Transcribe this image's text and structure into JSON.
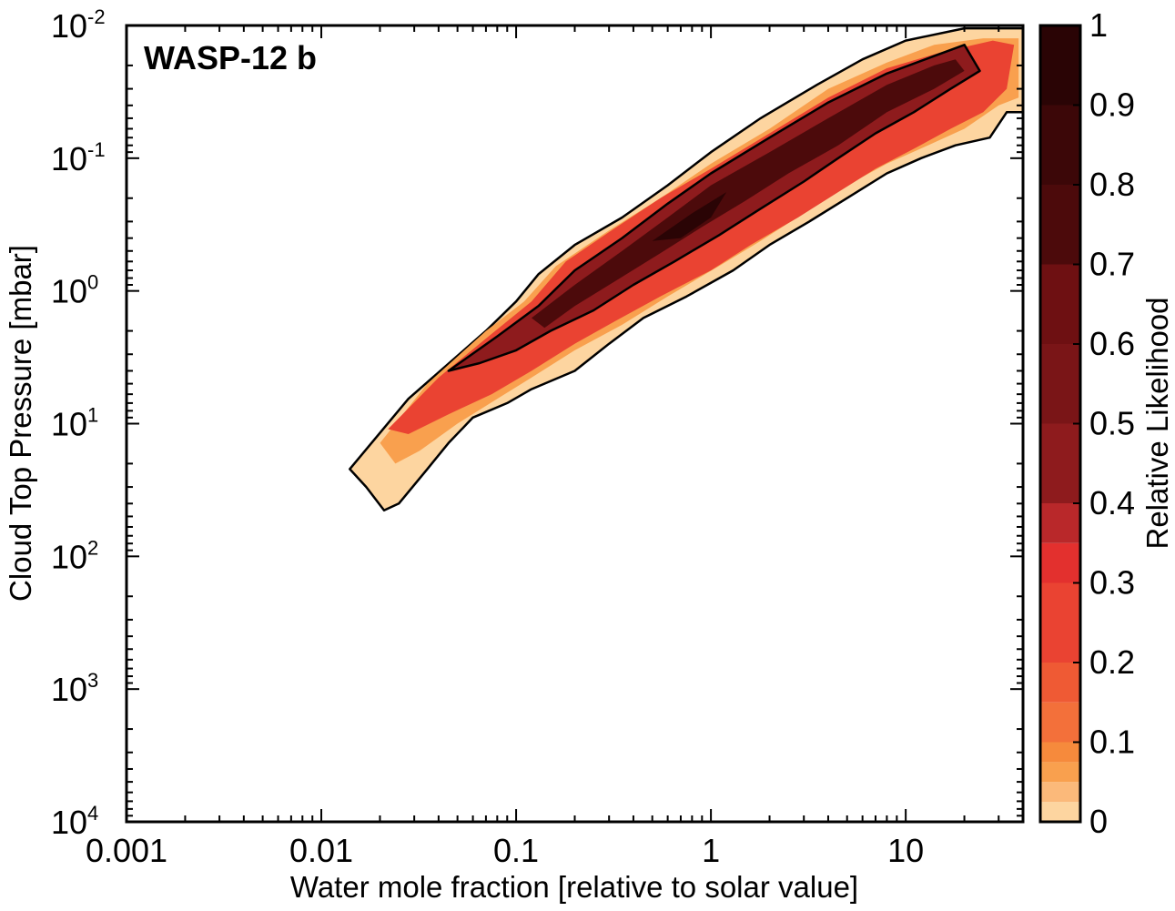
{
  "chart_data": {
    "type": "heatmap",
    "subtype": "filled-contour",
    "title": "",
    "annotation": "WASP-12 b",
    "xlabel": "Water mole fraction [relative to solar value]",
    "ylabel": "Cloud Top Pressure [mbar]",
    "x_scale": "log",
    "y_scale": "log",
    "y_inverted": true,
    "xlim": [
      0.001,
      40
    ],
    "ylim": [
      0.01,
      10000
    ],
    "x_ticks": [
      {
        "value": 0.001,
        "label": "0.001"
      },
      {
        "value": 0.01,
        "label": "0.01"
      },
      {
        "value": 0.1,
        "label": "0.1"
      },
      {
        "value": 1,
        "label": "1"
      },
      {
        "value": 10,
        "label": "10"
      }
    ],
    "y_ticks": [
      {
        "value": 0.01,
        "base": "10",
        "exp": "-2"
      },
      {
        "value": 0.1,
        "base": "10",
        "exp": "-1"
      },
      {
        "value": 1,
        "base": "10",
        "exp": "0"
      },
      {
        "value": 10,
        "base": "10",
        "exp": "1"
      },
      {
        "value": 100,
        "base": "10",
        "exp": "2"
      },
      {
        "value": 1000,
        "base": "10",
        "exp": "3"
      },
      {
        "value": 10000,
        "base": "10",
        "exp": "4"
      }
    ],
    "colorbar": {
      "label": "Relative Likelihood",
      "range": [
        0,
        1
      ],
      "ticks": [
        {
          "value": 0,
          "label": "0"
        },
        {
          "value": 0.1,
          "label": "0.1"
        },
        {
          "value": 0.2,
          "label": "0.2"
        },
        {
          "value": 0.3,
          "label": "0.3"
        },
        {
          "value": 0.4,
          "label": "0.4"
        },
        {
          "value": 0.5,
          "label": "0.5"
        },
        {
          "value": 0.6,
          "label": "0.6"
        },
        {
          "value": 0.7,
          "label": "0.7"
        },
        {
          "value": 0.8,
          "label": "0.8"
        },
        {
          "value": 0.9,
          "label": "0.9"
        },
        {
          "value": 1,
          "label": "1"
        }
      ],
      "levels": [
        {
          "from": 0.0,
          "to": 0.025,
          "color": "#fdd5a0"
        },
        {
          "from": 0.025,
          "to": 0.05,
          "color": "#fbb97a"
        },
        {
          "from": 0.05,
          "to": 0.075,
          "color": "#f9a04e"
        },
        {
          "from": 0.075,
          "to": 0.1,
          "color": "#f68a3c"
        },
        {
          "from": 0.1,
          "to": 0.15,
          "color": "#f3703a"
        },
        {
          "from": 0.15,
          "to": 0.2,
          "color": "#ef5a34"
        },
        {
          "from": 0.2,
          "to": 0.3,
          "color": "#ea4332"
        },
        {
          "from": 0.3,
          "to": 0.35,
          "color": "#e3302e"
        },
        {
          "from": 0.35,
          "to": 0.4,
          "color": "#b9282a"
        },
        {
          "from": 0.4,
          "to": 0.5,
          "color": "#8e1b1d"
        },
        {
          "from": 0.5,
          "to": 0.6,
          "color": "#7a1517"
        },
        {
          "from": 0.6,
          "to": 0.7,
          "color": "#6e1012"
        },
        {
          "from": 0.7,
          "to": 0.8,
          "color": "#4c0a0b"
        },
        {
          "from": 0.8,
          "to": 0.9,
          "color": "#3c0708"
        },
        {
          "from": 0.9,
          "to": 1.0,
          "color": "#2a0405"
        }
      ]
    },
    "regions": [
      {
        "name": "likelihood-0",
        "color": "#fdd5a0",
        "stroke": true,
        "points": [
          [
            0.014,
            22
          ],
          [
            0.028,
            6.5
          ],
          [
            0.07,
            2.0
          ],
          [
            0.1,
            1.2
          ],
          [
            0.13,
            0.75
          ],
          [
            0.2,
            0.45
          ],
          [
            0.35,
            0.28
          ],
          [
            0.6,
            0.16
          ],
          [
            1.0,
            0.09
          ],
          [
            1.8,
            0.05
          ],
          [
            3.5,
            0.028
          ],
          [
            6,
            0.018
          ],
          [
            10,
            0.013
          ],
          [
            20,
            0.0105
          ],
          [
            40,
            0.0105
          ],
          [
            40,
            0.045
          ],
          [
            33,
            0.045
          ],
          [
            27,
            0.07
          ],
          [
            18,
            0.08
          ],
          [
            12,
            0.1
          ],
          [
            8,
            0.13
          ],
          [
            5,
            0.2
          ],
          [
            3.2,
            0.3
          ],
          [
            2,
            0.45
          ],
          [
            1.3,
            0.7
          ],
          [
            0.75,
            1.1
          ],
          [
            0.45,
            1.6
          ],
          [
            0.3,
            2.5
          ],
          [
            0.2,
            4.0
          ],
          [
            0.12,
            5.5
          ],
          [
            0.09,
            7
          ],
          [
            0.06,
            9
          ],
          [
            0.045,
            14
          ],
          [
            0.035,
            22
          ],
          [
            0.025,
            40
          ],
          [
            0.021,
            45
          ],
          [
            0.017,
            30
          ]
        ]
      },
      {
        "name": "likelihood-005",
        "color": "#f9a04e",
        "stroke": false,
        "points": [
          [
            0.02,
            14
          ],
          [
            0.035,
            5.0
          ],
          [
            0.07,
            2.0
          ],
          [
            0.11,
            1.2
          ],
          [
            0.16,
            0.65
          ],
          [
            0.3,
            0.35
          ],
          [
            0.55,
            0.2
          ],
          [
            1.0,
            0.11
          ],
          [
            2.0,
            0.06
          ],
          [
            4.0,
            0.03
          ],
          [
            8,
            0.019
          ],
          [
            14,
            0.014
          ],
          [
            25,
            0.0125
          ],
          [
            38,
            0.0125
          ],
          [
            38,
            0.035
          ],
          [
            30,
            0.04
          ],
          [
            20,
            0.06
          ],
          [
            13,
            0.08
          ],
          [
            8,
            0.11
          ],
          [
            5,
            0.16
          ],
          [
            3,
            0.26
          ],
          [
            1.8,
            0.42
          ],
          [
            1.1,
            0.65
          ],
          [
            0.6,
            1.1
          ],
          [
            0.35,
            1.8
          ],
          [
            0.2,
            2.8
          ],
          [
            0.12,
            4.5
          ],
          [
            0.08,
            6.5
          ],
          [
            0.05,
            10
          ],
          [
            0.032,
            16
          ],
          [
            0.024,
            20
          ]
        ]
      },
      {
        "name": "likelihood-02",
        "color": "#ea4332",
        "stroke": false,
        "points": [
          [
            0.022,
            11
          ],
          [
            0.04,
            4.5
          ],
          [
            0.075,
            2.1
          ],
          [
            0.12,
            1.2
          ],
          [
            0.18,
            0.6
          ],
          [
            0.3,
            0.36
          ],
          [
            0.55,
            0.2
          ],
          [
            1.0,
            0.12
          ],
          [
            2.0,
            0.065
          ],
          [
            4.0,
            0.035
          ],
          [
            8,
            0.021
          ],
          [
            15,
            0.016
          ],
          [
            28,
            0.013
          ],
          [
            36,
            0.014
          ],
          [
            33,
            0.03
          ],
          [
            25,
            0.045
          ],
          [
            17,
            0.06
          ],
          [
            11,
            0.085
          ],
          [
            7,
            0.12
          ],
          [
            4.5,
            0.18
          ],
          [
            2.8,
            0.28
          ],
          [
            1.6,
            0.45
          ],
          [
            1.0,
            0.7
          ],
          [
            0.55,
            1.1
          ],
          [
            0.32,
            1.7
          ],
          [
            0.2,
            2.5
          ],
          [
            0.12,
            4.0
          ],
          [
            0.075,
            6.0
          ],
          [
            0.045,
            8.5
          ],
          [
            0.028,
            12
          ]
        ]
      },
      {
        "name": "likelihood-04",
        "color": "#8e1b1d",
        "stroke": true,
        "points": [
          [
            0.045,
            4.0
          ],
          [
            0.08,
            2.2
          ],
          [
            0.13,
            1.3
          ],
          [
            0.2,
            0.7
          ],
          [
            0.35,
            0.4
          ],
          [
            0.6,
            0.22
          ],
          [
            1.0,
            0.13
          ],
          [
            2.0,
            0.07
          ],
          [
            4.0,
            0.038
          ],
          [
            8,
            0.023
          ],
          [
            14,
            0.017
          ],
          [
            20,
            0.014
          ],
          [
            24,
            0.022
          ],
          [
            17,
            0.03
          ],
          [
            11,
            0.045
          ],
          [
            7,
            0.065
          ],
          [
            4.5,
            0.1
          ],
          [
            3,
            0.15
          ],
          [
            1.8,
            0.24
          ],
          [
            1.1,
            0.38
          ],
          [
            0.65,
            0.6
          ],
          [
            0.4,
            0.9
          ],
          [
            0.25,
            1.4
          ],
          [
            0.15,
            2.0
          ],
          [
            0.1,
            2.8
          ],
          [
            0.065,
            3.5
          ]
        ]
      },
      {
        "name": "likelihood-07",
        "color": "#4c0a0b",
        "stroke": false,
        "points": [
          [
            0.12,
            1.6
          ],
          [
            0.2,
            0.9
          ],
          [
            0.35,
            0.5
          ],
          [
            0.6,
            0.28
          ],
          [
            1.0,
            0.16
          ],
          [
            2.0,
            0.09
          ],
          [
            4.0,
            0.05
          ],
          [
            8,
            0.028
          ],
          [
            14,
            0.02
          ],
          [
            18,
            0.018
          ],
          [
            20,
            0.022
          ],
          [
            14,
            0.03
          ],
          [
            8,
            0.045
          ],
          [
            4.5,
            0.08
          ],
          [
            2.5,
            0.13
          ],
          [
            1.5,
            0.21
          ],
          [
            0.9,
            0.33
          ],
          [
            0.55,
            0.52
          ],
          [
            0.32,
            0.85
          ],
          [
            0.2,
            1.3
          ],
          [
            0.14,
            1.9
          ]
        ]
      },
      {
        "name": "likelihood-09",
        "color": "#2a0405",
        "stroke": false,
        "points": [
          [
            0.5,
            0.42
          ],
          [
            0.8,
            0.26
          ],
          [
            1.2,
            0.18
          ],
          [
            1.0,
            0.28
          ],
          [
            0.7,
            0.4
          ]
        ]
      }
    ]
  }
}
